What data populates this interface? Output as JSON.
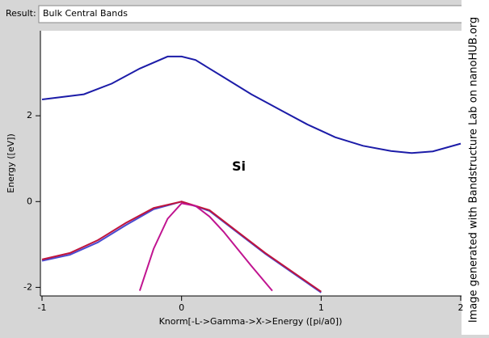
{
  "result_label": "Result:",
  "result_value": "Bulk Central Bands",
  "watermark": "Image generated with Bandstructure Lab on nanoHUB.org",
  "chart_data": {
    "type": "line",
    "xlabel": "Knorm[-L->Gamma->X->Energy ([pi/a0])",
    "ylabel": "Energy ([eV])",
    "annotation": {
      "text": "Si",
      "x": 0.41,
      "y": 0.81
    },
    "xlim": [
      -1,
      2
    ],
    "ylim": [
      -2.2,
      3.85
    ],
    "xticks": [
      -1,
      0,
      1,
      2
    ],
    "yticks": [
      -2,
      0,
      2
    ],
    "series": [
      {
        "color": "#1c1ca8",
        "x": [
          -1,
          -0.7,
          -0.5,
          -0.3,
          -0.1,
          0,
          0.1,
          0.3,
          0.5,
          0.7,
          0.9,
          1.0,
          1.1,
          1.3,
          1.5,
          1.65,
          1.8,
          2
        ],
        "values": [
          2.38,
          2.5,
          2.75,
          3.1,
          3.38,
          3.38,
          3.3,
          2.9,
          2.5,
          2.15,
          1.8,
          1.65,
          1.5,
          1.3,
          1.18,
          1.13,
          1.17,
          1.35
        ]
      },
      {
        "color": "#4a4ad0",
        "x": [
          -1,
          -0.8,
          -0.6,
          -0.4,
          -0.2,
          0,
          0.2,
          0.4,
          0.6,
          0.8,
          1
        ],
        "values": [
          -1.38,
          -1.24,
          -0.95,
          -0.55,
          -0.18,
          0,
          -0.22,
          -0.72,
          -1.22,
          -1.67,
          -2.12
        ]
      },
      {
        "color": "#c0143c",
        "x": [
          -1,
          -0.8,
          -0.6,
          -0.4,
          -0.2,
          0,
          0.2,
          0.4,
          0.6,
          0.8,
          1
        ],
        "values": [
          -1.35,
          -1.2,
          -0.9,
          -0.5,
          -0.15,
          0,
          -0.2,
          -0.7,
          -1.2,
          -1.65,
          -2.1
        ]
      },
      {
        "color": "#c01490",
        "x": [
          -0.3,
          -0.2,
          -0.1,
          0,
          0.1,
          0.2,
          0.3,
          0.4,
          0.5,
          0.65
        ],
        "values": [
          -2.08,
          -1.1,
          -0.4,
          -0.04,
          -0.1,
          -0.35,
          -0.7,
          -1.1,
          -1.5,
          -2.08
        ]
      }
    ]
  }
}
